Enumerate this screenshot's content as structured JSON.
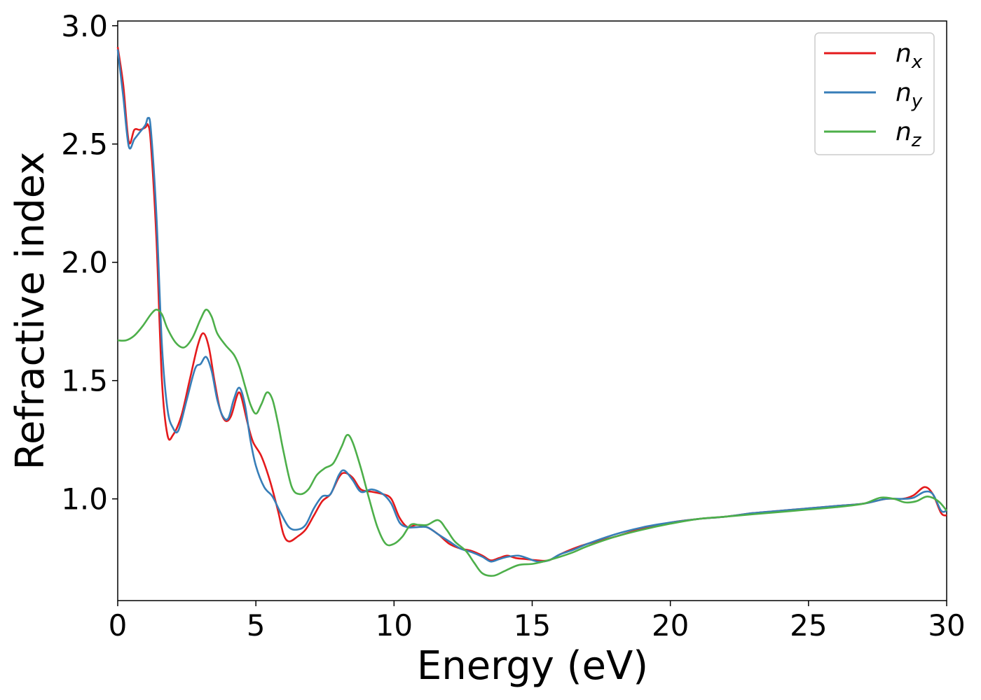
{
  "chart_data": {
    "type": "line",
    "xlabel": "Energy (eV)",
    "ylabel": "Refractive index",
    "xlim": [
      0,
      30
    ],
    "ylim": [
      0.57,
      3.02
    ],
    "xticks": [
      "0",
      "5",
      "10",
      "15",
      "20",
      "25",
      "30"
    ],
    "yticks": [
      "1.0",
      "1.5",
      "2.0",
      "2.5",
      "3.0"
    ],
    "grid": false,
    "legend_position": "top-right",
    "series": [
      {
        "name": "n_x",
        "label_base": "n",
        "label_sub": "x",
        "color": "#e41a1c",
        "points": [
          [
            0,
            2.91
          ],
          [
            0.2,
            2.75
          ],
          [
            0.4,
            2.51
          ],
          [
            0.6,
            2.56
          ],
          [
            0.8,
            2.56
          ],
          [
            1.0,
            2.57
          ],
          [
            1.1,
            2.58
          ],
          [
            1.2,
            2.5
          ],
          [
            1.4,
            2.1
          ],
          [
            1.6,
            1.5
          ],
          [
            1.8,
            1.27
          ],
          [
            2.0,
            1.27
          ],
          [
            2.3,
            1.35
          ],
          [
            2.6,
            1.5
          ],
          [
            2.9,
            1.65
          ],
          [
            3.1,
            1.7
          ],
          [
            3.3,
            1.64
          ],
          [
            3.5,
            1.5
          ],
          [
            3.7,
            1.38
          ],
          [
            3.9,
            1.33
          ],
          [
            4.1,
            1.35
          ],
          [
            4.3,
            1.43
          ],
          [
            4.4,
            1.45
          ],
          [
            4.5,
            1.42
          ],
          [
            4.7,
            1.32
          ],
          [
            4.9,
            1.24
          ],
          [
            5.2,
            1.18
          ],
          [
            5.5,
            1.08
          ],
          [
            5.8,
            0.95
          ],
          [
            6.0,
            0.85
          ],
          [
            6.2,
            0.82
          ],
          [
            6.5,
            0.84
          ],
          [
            6.8,
            0.87
          ],
          [
            7.1,
            0.93
          ],
          [
            7.4,
            0.99
          ],
          [
            7.7,
            1.02
          ],
          [
            8.0,
            1.09
          ],
          [
            8.2,
            1.11
          ],
          [
            8.5,
            1.09
          ],
          [
            8.8,
            1.04
          ],
          [
            9.2,
            1.03
          ],
          [
            9.6,
            1.02
          ],
          [
            9.9,
            1.0
          ],
          [
            10.2,
            0.92
          ],
          [
            10.5,
            0.88
          ],
          [
            10.8,
            0.89
          ],
          [
            11.2,
            0.88
          ],
          [
            11.6,
            0.85
          ],
          [
            12.0,
            0.81
          ],
          [
            12.4,
            0.79
          ],
          [
            12.8,
            0.78
          ],
          [
            13.2,
            0.76
          ],
          [
            13.5,
            0.74
          ],
          [
            13.8,
            0.75
          ],
          [
            14.1,
            0.76
          ],
          [
            14.4,
            0.75
          ],
          [
            14.8,
            0.745
          ],
          [
            15.2,
            0.74
          ],
          [
            15.6,
            0.74
          ],
          [
            16.0,
            0.765
          ],
          [
            16.5,
            0.79
          ],
          [
            17.0,
            0.81
          ],
          [
            18.0,
            0.84
          ],
          [
            19.0,
            0.875
          ],
          [
            20.0,
            0.9
          ],
          [
            21.0,
            0.915
          ],
          [
            22.0,
            0.925
          ],
          [
            23.0,
            0.94
          ],
          [
            24.0,
            0.95
          ],
          [
            25.0,
            0.96
          ],
          [
            26.0,
            0.97
          ],
          [
            27.0,
            0.98
          ],
          [
            27.8,
            1.0
          ],
          [
            28.4,
            1.0
          ],
          [
            28.8,
            1.015
          ],
          [
            29.2,
            1.05
          ],
          [
            29.5,
            1.02
          ],
          [
            29.8,
            0.94
          ],
          [
            30.0,
            0.93
          ]
        ]
      },
      {
        "name": "n_y",
        "label_base": "n",
        "label_sub": "y",
        "color": "#377eb8",
        "points": [
          [
            0,
            2.9
          ],
          [
            0.2,
            2.7
          ],
          [
            0.4,
            2.49
          ],
          [
            0.6,
            2.52
          ],
          [
            0.8,
            2.55
          ],
          [
            1.0,
            2.58
          ],
          [
            1.1,
            2.61
          ],
          [
            1.2,
            2.56
          ],
          [
            1.4,
            2.2
          ],
          [
            1.6,
            1.65
          ],
          [
            1.8,
            1.38
          ],
          [
            2.0,
            1.3
          ],
          [
            2.2,
            1.29
          ],
          [
            2.5,
            1.42
          ],
          [
            2.8,
            1.55
          ],
          [
            3.0,
            1.57
          ],
          [
            3.2,
            1.6
          ],
          [
            3.4,
            1.54
          ],
          [
            3.6,
            1.42
          ],
          [
            3.8,
            1.35
          ],
          [
            4.0,
            1.34
          ],
          [
            4.2,
            1.42
          ],
          [
            4.4,
            1.47
          ],
          [
            4.6,
            1.4
          ],
          [
            4.8,
            1.25
          ],
          [
            5.0,
            1.14
          ],
          [
            5.3,
            1.05
          ],
          [
            5.6,
            1.01
          ],
          [
            5.9,
            0.94
          ],
          [
            6.2,
            0.88
          ],
          [
            6.5,
            0.87
          ],
          [
            6.8,
            0.89
          ],
          [
            7.1,
            0.96
          ],
          [
            7.4,
            1.01
          ],
          [
            7.7,
            1.02
          ],
          [
            8.0,
            1.1
          ],
          [
            8.2,
            1.12
          ],
          [
            8.5,
            1.08
          ],
          [
            8.8,
            1.03
          ],
          [
            9.2,
            1.04
          ],
          [
            9.6,
            1.02
          ],
          [
            9.9,
            0.98
          ],
          [
            10.2,
            0.9
          ],
          [
            10.5,
            0.88
          ],
          [
            10.8,
            0.88
          ],
          [
            11.2,
            0.88
          ],
          [
            11.6,
            0.85
          ],
          [
            12.0,
            0.82
          ],
          [
            12.4,
            0.79
          ],
          [
            12.8,
            0.775
          ],
          [
            13.2,
            0.755
          ],
          [
            13.5,
            0.735
          ],
          [
            13.8,
            0.745
          ],
          [
            14.1,
            0.755
          ],
          [
            14.5,
            0.76
          ],
          [
            14.8,
            0.75
          ],
          [
            15.2,
            0.735
          ],
          [
            15.6,
            0.74
          ],
          [
            16.0,
            0.765
          ],
          [
            16.5,
            0.785
          ],
          [
            17.0,
            0.81
          ],
          [
            18.0,
            0.85
          ],
          [
            19.0,
            0.88
          ],
          [
            20.0,
            0.9
          ],
          [
            21.0,
            0.915
          ],
          [
            22.0,
            0.925
          ],
          [
            23.0,
            0.94
          ],
          [
            24.0,
            0.95
          ],
          [
            25.0,
            0.96
          ],
          [
            26.0,
            0.97
          ],
          [
            27.0,
            0.98
          ],
          [
            27.8,
            1.0
          ],
          [
            28.4,
            1.0
          ],
          [
            28.8,
            1.005
          ],
          [
            29.2,
            1.03
          ],
          [
            29.5,
            1.02
          ],
          [
            29.8,
            0.95
          ],
          [
            30.0,
            0.95
          ]
        ]
      },
      {
        "name": "n_z",
        "label_base": "n",
        "label_sub": "z",
        "color": "#4daf4a",
        "points": [
          [
            0,
            1.67
          ],
          [
            0.3,
            1.67
          ],
          [
            0.6,
            1.69
          ],
          [
            0.9,
            1.73
          ],
          [
            1.2,
            1.78
          ],
          [
            1.4,
            1.8
          ],
          [
            1.6,
            1.78
          ],
          [
            1.8,
            1.72
          ],
          [
            2.1,
            1.66
          ],
          [
            2.4,
            1.64
          ],
          [
            2.7,
            1.68
          ],
          [
            3.0,
            1.76
          ],
          [
            3.2,
            1.8
          ],
          [
            3.4,
            1.77
          ],
          [
            3.6,
            1.7
          ],
          [
            3.9,
            1.65
          ],
          [
            4.2,
            1.61
          ],
          [
            4.4,
            1.56
          ],
          [
            4.6,
            1.48
          ],
          [
            4.8,
            1.4
          ],
          [
            5.0,
            1.36
          ],
          [
            5.2,
            1.4
          ],
          [
            5.4,
            1.45
          ],
          [
            5.6,
            1.42
          ],
          [
            5.8,
            1.32
          ],
          [
            6.0,
            1.2
          ],
          [
            6.3,
            1.05
          ],
          [
            6.6,
            1.02
          ],
          [
            6.9,
            1.04
          ],
          [
            7.2,
            1.1
          ],
          [
            7.5,
            1.13
          ],
          [
            7.8,
            1.15
          ],
          [
            8.1,
            1.22
          ],
          [
            8.3,
            1.27
          ],
          [
            8.5,
            1.24
          ],
          [
            8.8,
            1.13
          ],
          [
            9.1,
            1.0
          ],
          [
            9.4,
            0.88
          ],
          [
            9.7,
            0.81
          ],
          [
            10.0,
            0.81
          ],
          [
            10.3,
            0.84
          ],
          [
            10.6,
            0.89
          ],
          [
            10.9,
            0.89
          ],
          [
            11.2,
            0.89
          ],
          [
            11.6,
            0.91
          ],
          [
            11.9,
            0.87
          ],
          [
            12.2,
            0.82
          ],
          [
            12.6,
            0.78
          ],
          [
            12.9,
            0.73
          ],
          [
            13.2,
            0.685
          ],
          [
            13.6,
            0.675
          ],
          [
            14.0,
            0.695
          ],
          [
            14.5,
            0.72
          ],
          [
            15.0,
            0.725
          ],
          [
            15.4,
            0.735
          ],
          [
            16.0,
            0.755
          ],
          [
            16.5,
            0.775
          ],
          [
            17.0,
            0.8
          ],
          [
            18.0,
            0.84
          ],
          [
            19.0,
            0.87
          ],
          [
            20.0,
            0.895
          ],
          [
            21.0,
            0.915
          ],
          [
            22.0,
            0.925
          ],
          [
            23.0,
            0.935
          ],
          [
            24.0,
            0.945
          ],
          [
            25.0,
            0.955
          ],
          [
            26.0,
            0.965
          ],
          [
            27.0,
            0.98
          ],
          [
            27.6,
            1.005
          ],
          [
            28.1,
            1.0
          ],
          [
            28.5,
            0.985
          ],
          [
            28.9,
            0.99
          ],
          [
            29.3,
            1.01
          ],
          [
            29.7,
            0.99
          ],
          [
            30.0,
            0.95
          ]
        ]
      }
    ]
  }
}
